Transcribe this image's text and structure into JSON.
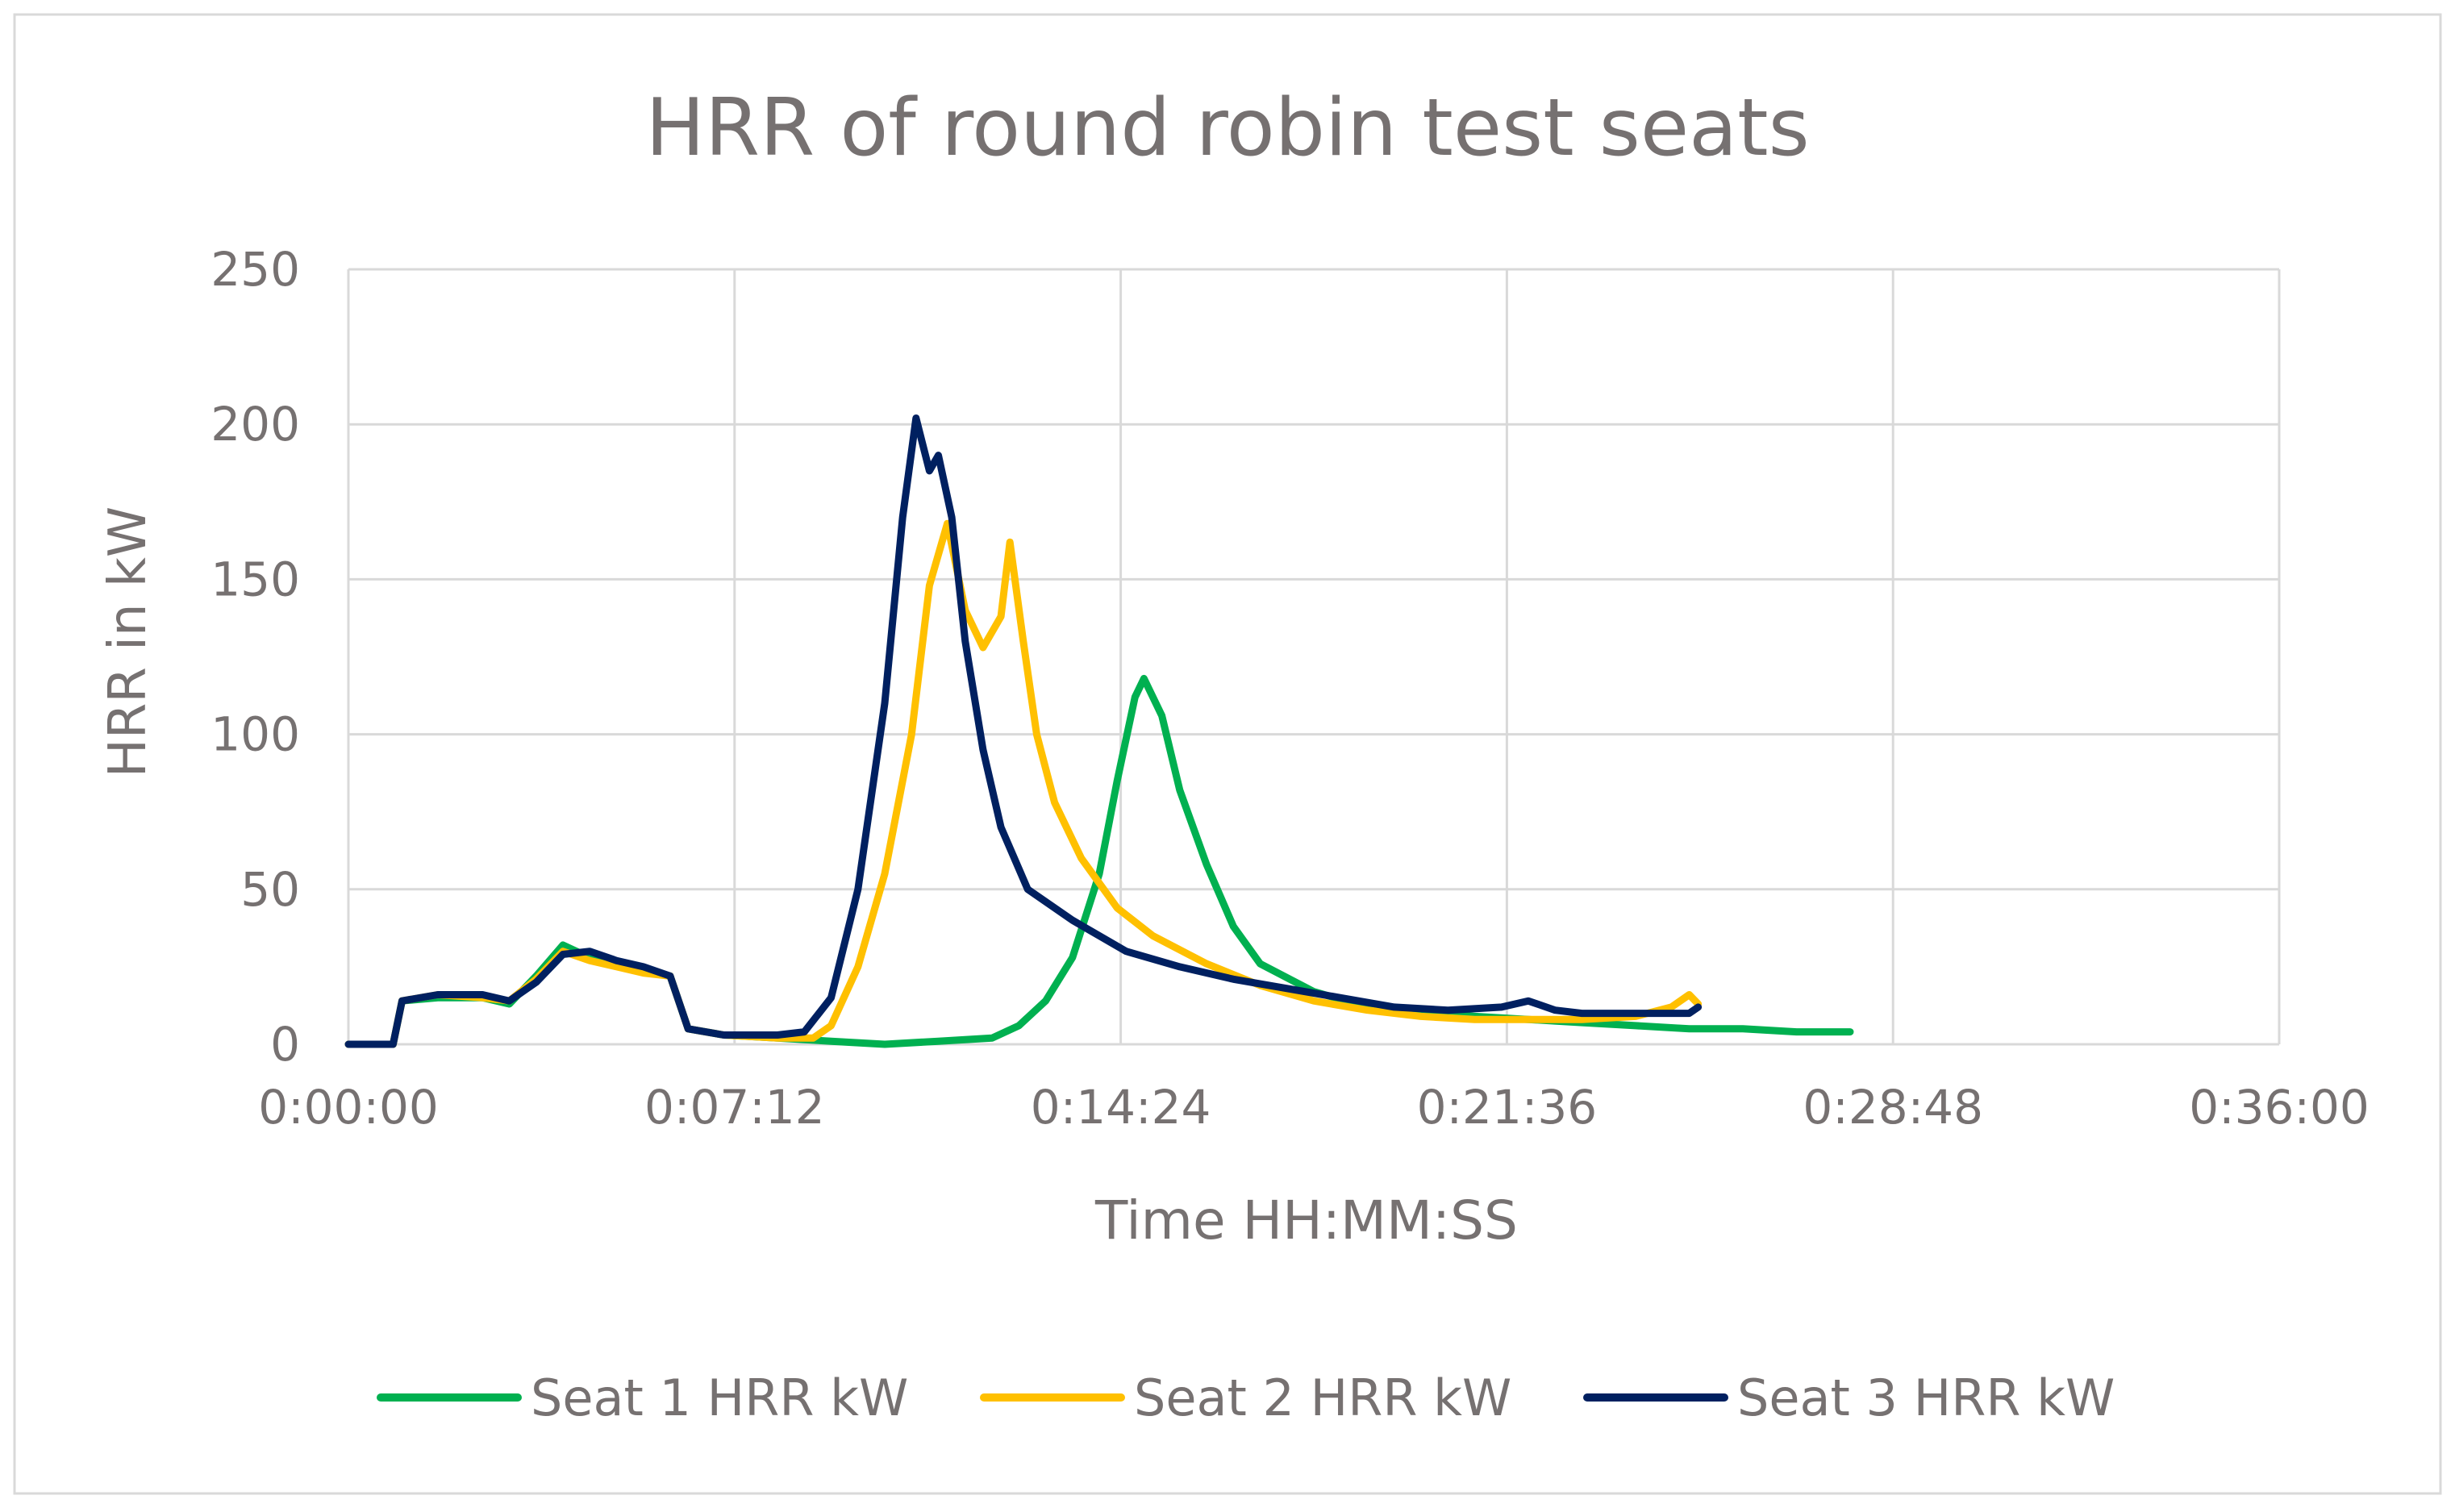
{
  "chart_data": {
    "type": "line",
    "title": "HRR of round robin test seats",
    "xlabel": "Time HH:MM:SS",
    "ylabel": "HRR in kW",
    "x_unit": "time (HH:MM:SS)",
    "xlim": [
      "0:00:00",
      "0:36:00"
    ],
    "ylim": [
      0,
      250
    ],
    "x_ticks": [
      "0:00:00",
      "0:07:12",
      "0:14:24",
      "0:21:36",
      "0:28:48",
      "0:36:00"
    ],
    "y_ticks": [
      "0",
      "50",
      "100",
      "150",
      "200",
      "250"
    ],
    "grid": true,
    "legend_position": "bottom",
    "series": [
      {
        "name": "Seat 1 HRR kW",
        "color": "#00B050",
        "points": [
          [
            "0:00:00",
            0
          ],
          [
            "0:00:50",
            0
          ],
          [
            "0:01:00",
            14
          ],
          [
            "0:01:40",
            15
          ],
          [
            "0:02:30",
            15
          ],
          [
            "0:03:00",
            13
          ],
          [
            "0:03:30",
            22
          ],
          [
            "0:04:00",
            32
          ],
          [
            "0:04:30",
            28
          ],
          [
            "0:05:30",
            24
          ],
          [
            "0:06:00",
            22
          ],
          [
            "0:06:20",
            5
          ],
          [
            "0:07:00",
            3
          ],
          [
            "0:08:00",
            2
          ],
          [
            "0:09:00",
            1
          ],
          [
            "0:10:00",
            0
          ],
          [
            "0:11:00",
            1
          ],
          [
            "0:12:00",
            2
          ],
          [
            "0:12:30",
            6
          ],
          [
            "0:13:00",
            14
          ],
          [
            "0:13:30",
            28
          ],
          [
            "0:14:00",
            55
          ],
          [
            "0:14:20",
            85
          ],
          [
            "0:14:40",
            112
          ],
          [
            "0:14:50",
            118
          ],
          [
            "0:15:10",
            106
          ],
          [
            "0:15:30",
            82
          ],
          [
            "0:16:00",
            58
          ],
          [
            "0:16:30",
            38
          ],
          [
            "0:17:00",
            26
          ],
          [
            "0:18:00",
            17
          ],
          [
            "0:19:00",
            12
          ],
          [
            "0:20:00",
            10
          ],
          [
            "0:21:00",
            9
          ],
          [
            "0:22:00",
            8
          ],
          [
            "0:23:00",
            7
          ],
          [
            "0:24:00",
            6
          ],
          [
            "0:25:00",
            5
          ],
          [
            "0:26:00",
            5
          ],
          [
            "0:27:00",
            4
          ],
          [
            "0:28:00",
            4
          ]
        ]
      },
      {
        "name": "Seat 2 HRR kW",
        "color": "#FFC000",
        "points": [
          [
            "0:00:00",
            0
          ],
          [
            "0:00:50",
            0
          ],
          [
            "0:01:00",
            14
          ],
          [
            "0:01:40",
            16
          ],
          [
            "0:02:30",
            15
          ],
          [
            "0:03:00",
            14
          ],
          [
            "0:03:30",
            21
          ],
          [
            "0:04:00",
            30
          ],
          [
            "0:04:30",
            27
          ],
          [
            "0:05:30",
            23
          ],
          [
            "0:06:00",
            22
          ],
          [
            "0:06:20",
            5
          ],
          [
            "0:07:00",
            3
          ],
          [
            "0:08:00",
            2
          ],
          [
            "0:08:40",
            2
          ],
          [
            "0:09:00",
            6
          ],
          [
            "0:09:30",
            25
          ],
          [
            "0:10:00",
            55
          ],
          [
            "0:10:30",
            100
          ],
          [
            "0:10:50",
            148
          ],
          [
            "0:11:10",
            168
          ],
          [
            "0:11:30",
            140
          ],
          [
            "0:11:50",
            128
          ],
          [
            "0:12:10",
            138
          ],
          [
            "0:12:20",
            162
          ],
          [
            "0:12:35",
            130
          ],
          [
            "0:12:50",
            100
          ],
          [
            "0:13:10",
            78
          ],
          [
            "0:13:40",
            60
          ],
          [
            "0:14:20",
            44
          ],
          [
            "0:15:00",
            35
          ],
          [
            "0:16:00",
            26
          ],
          [
            "0:17:00",
            19
          ],
          [
            "0:18:00",
            14
          ],
          [
            "0:19:00",
            11
          ],
          [
            "0:20:00",
            9
          ],
          [
            "0:21:00",
            8
          ],
          [
            "0:22:00",
            8
          ],
          [
            "0:23:00",
            8
          ],
          [
            "0:24:00",
            9
          ],
          [
            "0:24:40",
            12
          ],
          [
            "0:25:00",
            16
          ],
          [
            "0:25:10",
            13
          ]
        ]
      },
      {
        "name": "Seat 3 HRR kW",
        "color": "#002060",
        "points": [
          [
            "0:00:00",
            0
          ],
          [
            "0:00:50",
            0
          ],
          [
            "0:01:00",
            14
          ],
          [
            "0:01:40",
            16
          ],
          [
            "0:02:30",
            16
          ],
          [
            "0:03:00",
            14
          ],
          [
            "0:03:30",
            20
          ],
          [
            "0:04:00",
            29
          ],
          [
            "0:04:30",
            30
          ],
          [
            "0:05:00",
            27
          ],
          [
            "0:05:30",
            25
          ],
          [
            "0:06:00",
            22
          ],
          [
            "0:06:20",
            5
          ],
          [
            "0:07:00",
            3
          ],
          [
            "0:08:00",
            3
          ],
          [
            "0:08:30",
            4
          ],
          [
            "0:09:00",
            15
          ],
          [
            "0:09:30",
            50
          ],
          [
            "0:10:00",
            110
          ],
          [
            "0:10:20",
            170
          ],
          [
            "0:10:35",
            202
          ],
          [
            "0:10:50",
            185
          ],
          [
            "0:11:00",
            190
          ],
          [
            "0:11:15",
            170
          ],
          [
            "0:11:30",
            130
          ],
          [
            "0:11:50",
            95
          ],
          [
            "0:12:10",
            70
          ],
          [
            "0:12:40",
            50
          ],
          [
            "0:13:30",
            40
          ],
          [
            "0:14:30",
            30
          ],
          [
            "0:15:30",
            25
          ],
          [
            "0:16:30",
            21
          ],
          [
            "0:17:30",
            18
          ],
          [
            "0:18:30",
            15
          ],
          [
            "0:19:30",
            12
          ],
          [
            "0:20:30",
            11
          ],
          [
            "0:21:30",
            12
          ],
          [
            "0:22:00",
            14
          ],
          [
            "0:22:30",
            11
          ],
          [
            "0:23:00",
            10
          ],
          [
            "0:24:00",
            10
          ],
          [
            "0:25:00",
            10
          ],
          [
            "0:25:10",
            12
          ]
        ]
      }
    ]
  }
}
